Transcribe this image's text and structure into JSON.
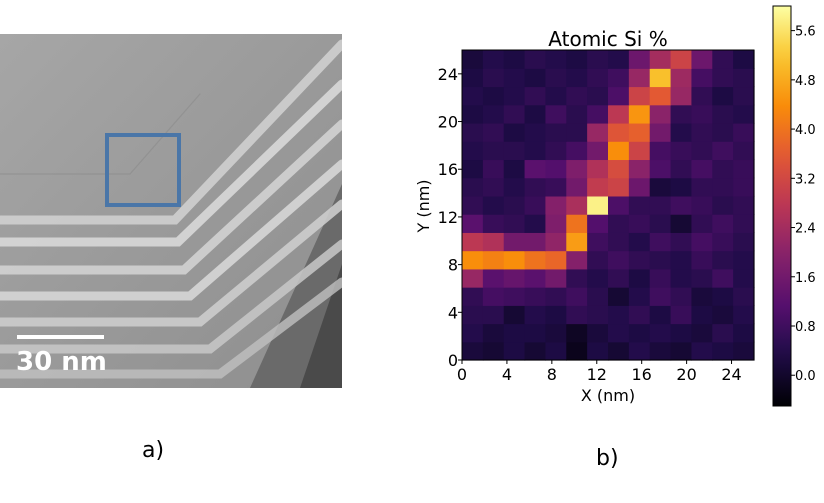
{
  "panel_a": {
    "label": "a)",
    "scale_bar_text": "30 nm"
  },
  "panel_b_label": "b)",
  "chart_data": {
    "type": "heatmap",
    "title": "Atomic Si %",
    "xlabel": "X (nm)",
    "ylabel": "Y (nm)",
    "x_ticks": [
      0,
      4,
      8,
      12,
      16,
      20,
      24
    ],
    "y_ticks": [
      0,
      4,
      8,
      12,
      16,
      20,
      24
    ],
    "xlim": [
      0,
      26
    ],
    "ylim": [
      0,
      26
    ],
    "colorbar": {
      "ticks": [
        0.0,
        0.8,
        1.6,
        2.4,
        3.2,
        4.0,
        4.8,
        5.6
      ],
      "range": [
        -0.5,
        6.0
      ]
    },
    "colormap": "inferno",
    "values": [
      [
        0.2,
        0.1,
        0.3,
        0.1,
        0.3,
        -0.2,
        0.3,
        0.1,
        0.4,
        0.2,
        0.1,
        0.4,
        0.3,
        0.2
      ],
      [
        0.4,
        0.2,
        0.3,
        0.3,
        0.2,
        -0.1,
        0.2,
        0.4,
        0.3,
        0.4,
        0.3,
        0.2,
        0.5,
        0.3
      ],
      [
        0.5,
        0.5,
        0.1,
        0.4,
        0.3,
        0.6,
        0.5,
        0.4,
        0.6,
        0.3,
        0.7,
        0.3,
        0.2,
        0.4
      ],
      [
        0.6,
        0.9,
        0.8,
        0.7,
        0.6,
        0.8,
        0.5,
        0.1,
        0.4,
        0.8,
        0.6,
        0.2,
        0.3,
        0.5
      ],
      [
        2.2,
        1.2,
        1.4,
        1.2,
        1.6,
        0.6,
        0.4,
        0.6,
        0.3,
        0.7,
        0.4,
        0.5,
        0.8,
        0.4
      ],
      [
        4.4,
        4.2,
        4.4,
        4.0,
        3.8,
        1.9,
        0.6,
        0.8,
        0.6,
        0.5,
        0.4,
        0.7,
        0.5,
        0.4
      ],
      [
        2.8,
        2.6,
        1.6,
        1.6,
        2.1,
        4.6,
        0.8,
        0.6,
        0.4,
        0.8,
        0.6,
        0.9,
        0.7,
        0.5
      ],
      [
        1.2,
        0.7,
        0.6,
        0.4,
        1.8,
        4.0,
        1.1,
        0.6,
        0.7,
        0.5,
        0.1,
        0.6,
        0.8,
        0.6
      ],
      [
        0.6,
        0.4,
        0.5,
        0.7,
        1.9,
        2.5,
        5.8,
        1.0,
        0.6,
        0.6,
        0.8,
        0.7,
        0.5,
        0.6
      ],
      [
        0.5,
        0.6,
        0.4,
        0.6,
        0.7,
        1.6,
        2.9,
        3.1,
        1.5,
        0.2,
        0.3,
        0.6,
        0.6,
        0.7
      ],
      [
        0.3,
        0.7,
        0.3,
        1.2,
        1.1,
        1.8,
        2.6,
        3.3,
        2.0,
        1.0,
        0.6,
        0.9,
        0.6,
        0.7
      ],
      [
        0.4,
        0.5,
        0.5,
        0.4,
        0.6,
        0.9,
        1.6,
        4.4,
        3.1,
        0.9,
        0.7,
        0.6,
        0.8,
        0.6
      ],
      [
        0.5,
        0.6,
        0.3,
        0.4,
        0.5,
        0.5,
        2.2,
        3.5,
        3.7,
        1.6,
        0.4,
        0.6,
        0.5,
        0.7
      ],
      [
        0.3,
        0.4,
        0.6,
        0.3,
        0.8,
        0.5,
        0.9,
        2.8,
        4.5,
        2.0,
        0.6,
        0.7,
        0.5,
        0.4
      ],
      [
        0.4,
        0.3,
        0.4,
        0.6,
        0.4,
        0.6,
        0.5,
        1.0,
        3.1,
        3.6,
        2.2,
        0.6,
        0.3,
        0.5
      ],
      [
        0.3,
        0.5,
        0.4,
        0.3,
        0.5,
        0.4,
        0.6,
        0.8,
        2.2,
        5.1,
        2.3,
        0.9,
        0.6,
        0.5
      ],
      [
        0.2,
        0.4,
        0.3,
        0.5,
        0.4,
        0.3,
        0.5,
        0.4,
        1.5,
        2.4,
        3.1,
        1.5,
        0.6,
        0.3
      ]
    ]
  }
}
